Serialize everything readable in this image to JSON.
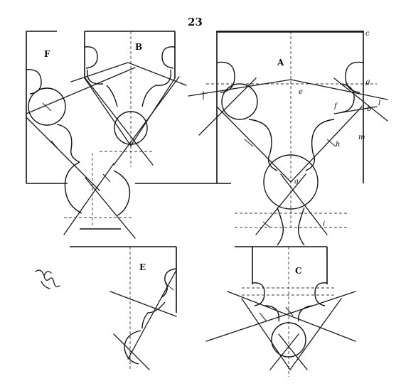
{
  "page_number": "23",
  "figures": [
    {
      "label": "A",
      "points": [
        "a",
        "b",
        "c",
        "e",
        "f",
        "g",
        "h",
        "i",
        "l",
        "m"
      ]
    },
    {
      "label": "B"
    },
    {
      "label": "C"
    },
    {
      "label": "E"
    },
    {
      "label": "F"
    }
  ],
  "marks": {
    "a": "a",
    "b": "b",
    "c": "c",
    "e": "e",
    "f": "f",
    "g": "g",
    "h": "h",
    "i": "i",
    "l": "l",
    "m": "m"
  }
}
